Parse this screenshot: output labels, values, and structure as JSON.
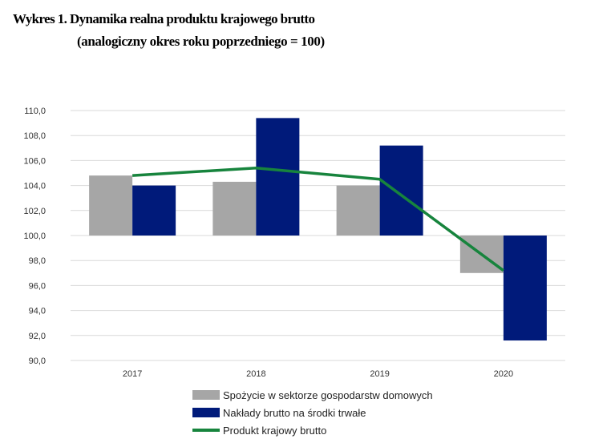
{
  "chart_data": {
    "type": "bar",
    "title": "Wykres 1. Dynamika realna produktu krajowego brutto",
    "subtitle": "(analogiczny okres roku poprzedniego = 100)",
    "categories": [
      "2017",
      "2018",
      "2019",
      "2020"
    ],
    "baseline": 100,
    "ylim": [
      90,
      110
    ],
    "yticks": [
      "110,0",
      "108,0",
      "106,0",
      "104,0",
      "102,0",
      "100,0",
      "98,0",
      "96,0",
      "94,0",
      "92,0",
      "90,0"
    ],
    "ytick_values": [
      110,
      108,
      106,
      104,
      102,
      100,
      98,
      96,
      94,
      92,
      90
    ],
    "grid": true,
    "series": [
      {
        "name": "Spożycie w sektorze gospodarstw domowych",
        "kind": "bar",
        "color": "#a6a6a6",
        "values": [
          104.8,
          104.3,
          104.0,
          97.0
        ]
      },
      {
        "name": "Nakłady brutto na środki trwałe",
        "kind": "bar",
        "color": "#001a7a",
        "values": [
          104.0,
          109.4,
          107.2,
          91.6
        ]
      },
      {
        "name": "Produkt krajowy brutto",
        "kind": "line",
        "color": "#17843d",
        "values": [
          104.8,
          105.4,
          104.5,
          97.2
        ]
      }
    ]
  }
}
